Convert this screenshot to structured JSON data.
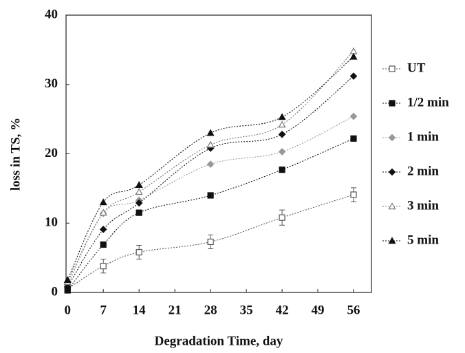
{
  "chart_data": {
    "type": "line",
    "xlabel": "Degradation Time, day",
    "ylabel": "loss in TS, %",
    "x": [
      0,
      7,
      14,
      28,
      42,
      56
    ],
    "series": [
      {
        "name": "UT",
        "color": "#555555",
        "marker": "square-open",
        "values": [
          0.5,
          3.8,
          5.8,
          7.3,
          10.8,
          14.1
        ],
        "errors": [
          0.3,
          1.0,
          1.0,
          1.0,
          1.1,
          1.0
        ]
      },
      {
        "name": "1/2 min",
        "color": "#111111",
        "marker": "square",
        "values": [
          0.3,
          6.9,
          11.5,
          14.0,
          17.7,
          22.2
        ]
      },
      {
        "name": "1 min",
        "color": "#999999",
        "marker": "diamond",
        "values": [
          1.0,
          11.4,
          13.3,
          18.5,
          20.3,
          25.4
        ]
      },
      {
        "name": "2 min",
        "color": "#111111",
        "marker": "diamond",
        "values": [
          0.8,
          9.1,
          12.9,
          20.8,
          22.8,
          31.2
        ]
      },
      {
        "name": "3 min",
        "color": "#777777",
        "marker": "triangle-open",
        "values": [
          1.5,
          11.5,
          14.5,
          21.3,
          24.2,
          34.8
        ]
      },
      {
        "name": "5 min",
        "color": "#111111",
        "marker": "triangle",
        "values": [
          1.8,
          13.0,
          15.5,
          23.0,
          25.3,
          34.0
        ]
      }
    ],
    "xlim": [
      -0.3,
      59.5
    ],
    "xticks": [
      0,
      7,
      14,
      21,
      28,
      35,
      42,
      49,
      56
    ],
    "ylim": [
      0,
      40
    ],
    "yticks": [
      0,
      10,
      20,
      30,
      40
    ],
    "legend": "right"
  }
}
